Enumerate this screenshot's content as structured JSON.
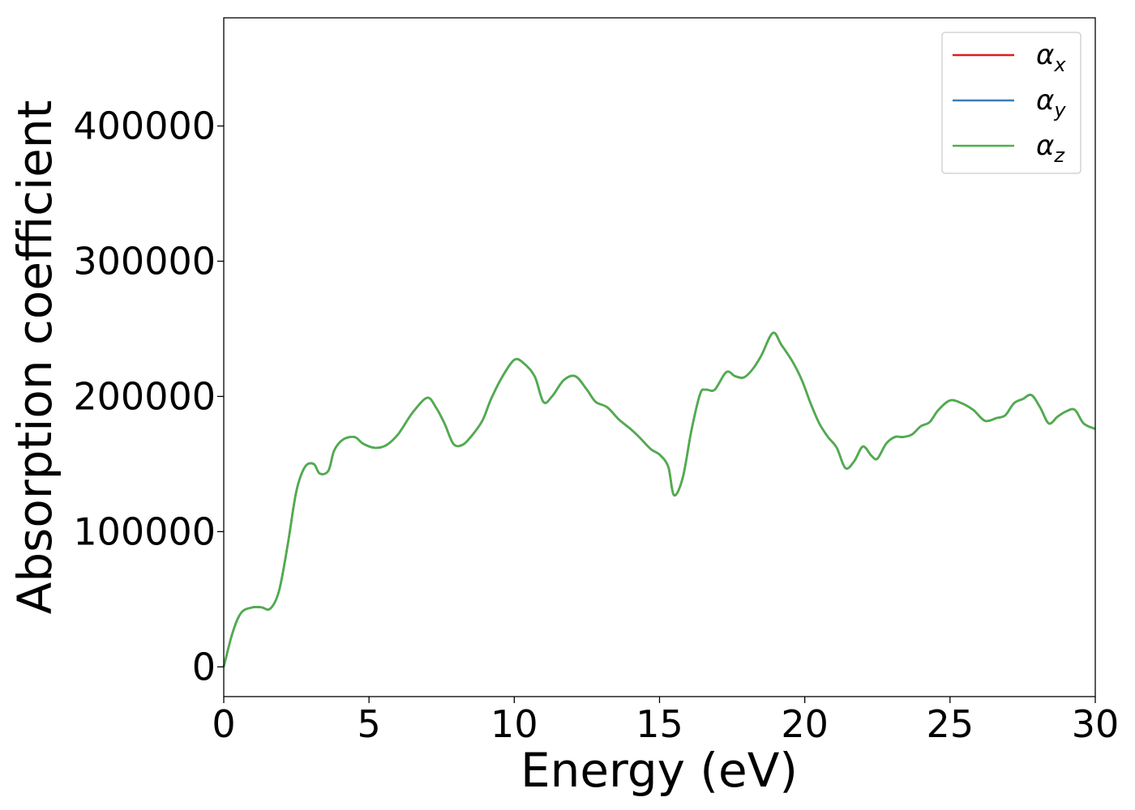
{
  "chart_data": {
    "type": "line",
    "xlabel": "Energy (eV)",
    "ylabel": "Absorption coefficient",
    "xlim": [
      0,
      30
    ],
    "ylim": [
      -22000,
      480000
    ],
    "xticks": [
      0,
      5,
      10,
      15,
      20,
      25,
      30
    ],
    "yticks": [
      0,
      100000,
      200000,
      300000,
      400000
    ],
    "grid": false,
    "legend_position": "top-right",
    "series": [
      {
        "name": "α_x",
        "label_base": "α",
        "label_sub": "x",
        "color": "#e41a1c",
        "x": [
          0,
          0.3,
          0.6,
          1.0,
          1.3,
          1.6,
          1.9,
          2.2,
          2.5,
          2.8,
          3.1,
          3.3,
          3.6,
          3.8,
          4.1,
          4.5,
          4.8,
          5.2,
          5.6,
          6.0,
          6.5,
          7.0,
          7.3,
          7.6,
          7.9,
          8.2,
          8.5,
          8.9,
          9.2,
          9.6,
          10.0,
          10.3,
          10.7,
          11.0,
          11.3,
          11.7,
          12.1,
          12.5,
          12.8,
          13.2,
          13.6,
          14.0,
          14.3,
          14.7,
          15.0,
          15.3,
          15.5,
          15.8,
          16.1,
          16.4,
          16.6,
          16.9,
          17.3,
          17.6,
          17.9,
          18.2,
          18.5,
          18.9,
          19.2,
          19.6,
          19.9,
          20.2,
          20.5,
          20.8,
          21.1,
          21.4,
          21.7,
          22.0,
          22.3,
          22.5,
          22.8,
          23.1,
          23.4,
          23.7,
          24.0,
          24.3,
          24.6,
          25.0,
          25.4,
          25.8,
          26.2,
          26.6,
          26.9,
          27.2,
          27.5,
          27.8,
          28.1,
          28.4,
          28.7,
          29.0,
          29.3,
          29.6,
          30.0
        ],
        "y": [
          0,
          25000,
          40000,
          44000,
          44000,
          43000,
          56000,
          90000,
          130000,
          148000,
          150000,
          143000,
          145000,
          160000,
          168000,
          170000,
          165000,
          162000,
          164000,
          172000,
          188000,
          199000,
          192000,
          180000,
          165000,
          164000,
          170000,
          182000,
          198000,
          215000,
          227000,
          225000,
          215000,
          196000,
          200000,
          212000,
          215000,
          205000,
          196000,
          192000,
          183000,
          176000,
          170000,
          161000,
          157000,
          148000,
          127000,
          140000,
          175000,
          202000,
          205000,
          205000,
          218000,
          215000,
          214000,
          220000,
          230000,
          247000,
          238000,
          225000,
          212000,
          195000,
          180000,
          170000,
          162000,
          147000,
          152000,
          163000,
          156000,
          154000,
          165000,
          170000,
          170000,
          172000,
          178000,
          181000,
          190000,
          197000,
          195000,
          190000,
          182000,
          184000,
          186000,
          195000,
          198000,
          201000,
          192000,
          180000,
          185000,
          189000,
          190000,
          180000,
          176000
        ]
      },
      {
        "name": "α_y",
        "label_base": "α",
        "label_sub": "y",
        "color": "#377eb8",
        "x": [
          0,
          0.3,
          0.6,
          1.0,
          1.3,
          1.6,
          1.9,
          2.2,
          2.5,
          2.8,
          3.1,
          3.3,
          3.6,
          3.8,
          4.1,
          4.5,
          4.8,
          5.2,
          5.6,
          6.0,
          6.5,
          7.0,
          7.3,
          7.6,
          7.9,
          8.2,
          8.5,
          8.9,
          9.2,
          9.6,
          10.0,
          10.3,
          10.7,
          11.0,
          11.3,
          11.7,
          12.1,
          12.5,
          12.8,
          13.2,
          13.6,
          14.0,
          14.3,
          14.7,
          15.0,
          15.3,
          15.5,
          15.8,
          16.1,
          16.4,
          16.6,
          16.9,
          17.3,
          17.6,
          17.9,
          18.2,
          18.5,
          18.9,
          19.2,
          19.6,
          19.9,
          20.2,
          20.5,
          20.8,
          21.1,
          21.4,
          21.7,
          22.0,
          22.3,
          22.5,
          22.8,
          23.1,
          23.4,
          23.7,
          24.0,
          24.3,
          24.6,
          25.0,
          25.4,
          25.8,
          26.2,
          26.6,
          26.9,
          27.2,
          27.5,
          27.8,
          28.1,
          28.4,
          28.7,
          29.0,
          29.3,
          29.6,
          30.0
        ],
        "y": [
          0,
          25000,
          40000,
          44000,
          44000,
          43000,
          56000,
          90000,
          130000,
          148000,
          150000,
          143000,
          145000,
          160000,
          168000,
          170000,
          165000,
          162000,
          164000,
          172000,
          188000,
          199000,
          192000,
          180000,
          165000,
          164000,
          170000,
          182000,
          198000,
          215000,
          227000,
          225000,
          215000,
          196000,
          200000,
          212000,
          215000,
          205000,
          196000,
          192000,
          183000,
          176000,
          170000,
          161000,
          157000,
          148000,
          127000,
          140000,
          175000,
          202000,
          205000,
          205000,
          218000,
          215000,
          214000,
          220000,
          230000,
          247000,
          238000,
          225000,
          212000,
          195000,
          180000,
          170000,
          162000,
          147000,
          152000,
          163000,
          156000,
          154000,
          165000,
          170000,
          170000,
          172000,
          178000,
          181000,
          190000,
          197000,
          195000,
          190000,
          182000,
          184000,
          186000,
          195000,
          198000,
          201000,
          192000,
          180000,
          185000,
          189000,
          190000,
          180000,
          176000
        ]
      },
      {
        "name": "α_z",
        "label_base": "α",
        "label_sub": "z",
        "color": "#4daf4a",
        "x": [
          0,
          0.3,
          0.6,
          1.0,
          1.3,
          1.6,
          1.9,
          2.2,
          2.5,
          2.8,
          3.1,
          3.3,
          3.6,
          3.8,
          4.1,
          4.5,
          4.8,
          5.2,
          5.6,
          6.0,
          6.5,
          7.0,
          7.3,
          7.6,
          7.9,
          8.2,
          8.5,
          8.9,
          9.2,
          9.6,
          10.0,
          10.3,
          10.7,
          11.0,
          11.3,
          11.7,
          12.1,
          12.5,
          12.8,
          13.2,
          13.6,
          14.0,
          14.3,
          14.7,
          15.0,
          15.3,
          15.5,
          15.8,
          16.1,
          16.4,
          16.6,
          16.9,
          17.3,
          17.6,
          17.9,
          18.2,
          18.5,
          18.9,
          19.2,
          19.6,
          19.9,
          20.2,
          20.5,
          20.8,
          21.1,
          21.4,
          21.7,
          22.0,
          22.3,
          22.5,
          22.8,
          23.1,
          23.4,
          23.7,
          24.0,
          24.3,
          24.6,
          25.0,
          25.4,
          25.8,
          26.2,
          26.6,
          26.9,
          27.2,
          27.5,
          27.8,
          28.1,
          28.4,
          28.7,
          29.0,
          29.3,
          29.6,
          30.0
        ],
        "y": [
          0,
          25000,
          40000,
          44000,
          44000,
          43000,
          56000,
          90000,
          130000,
          148000,
          150000,
          143000,
          145000,
          160000,
          168000,
          170000,
          165000,
          162000,
          164000,
          172000,
          188000,
          199000,
          192000,
          180000,
          165000,
          164000,
          170000,
          182000,
          198000,
          215000,
          227000,
          225000,
          215000,
          196000,
          200000,
          212000,
          215000,
          205000,
          196000,
          192000,
          183000,
          176000,
          170000,
          161000,
          157000,
          148000,
          127000,
          140000,
          175000,
          202000,
          205000,
          205000,
          218000,
          215000,
          214000,
          220000,
          230000,
          247000,
          238000,
          225000,
          212000,
          195000,
          180000,
          170000,
          162000,
          147000,
          152000,
          163000,
          156000,
          154000,
          165000,
          170000,
          170000,
          172000,
          178000,
          181000,
          190000,
          197000,
          195000,
          190000,
          182000,
          184000,
          186000,
          195000,
          198000,
          201000,
          192000,
          180000,
          185000,
          189000,
          190000,
          180000,
          176000
        ]
      }
    ]
  }
}
